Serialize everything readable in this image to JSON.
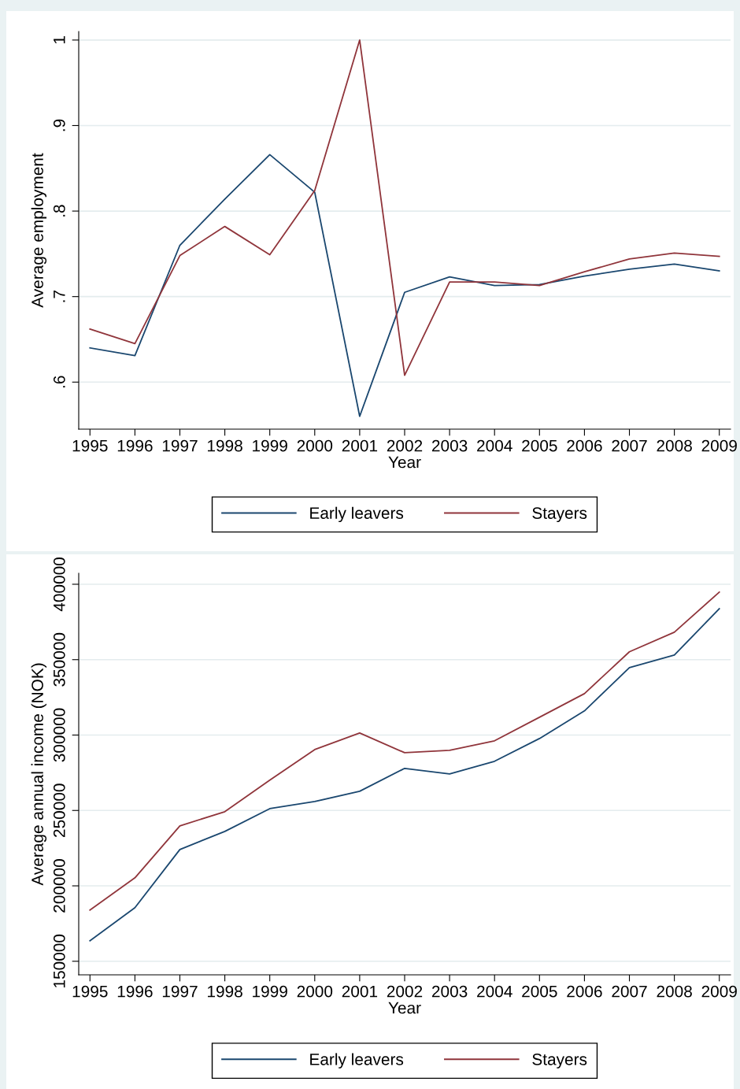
{
  "chart_data": [
    {
      "type": "line",
      "x": [
        1995,
        1996,
        1997,
        1998,
        1999,
        2000,
        2001,
        2002,
        2003,
        2004,
        2005,
        2006,
        2007,
        2008,
        2009
      ],
      "xlabel": "Year",
      "ylabel": "Average employment",
      "xlim": [
        1994.75,
        2009.25
      ],
      "xticks": [
        1995,
        1996,
        1997,
        1998,
        1999,
        2000,
        2001,
        2002,
        2003,
        2004,
        2005,
        2006,
        2007,
        2008,
        2009
      ],
      "ylim": [
        0.545,
        1.01
      ],
      "yticks": [
        {
          "value": 0.6,
          "label": ".6"
        },
        {
          "value": 0.7,
          "label": ".7"
        },
        {
          "value": 0.8,
          "label": ".8"
        },
        {
          "value": 0.9,
          "label": ".9"
        },
        {
          "value": 1,
          "label": "1"
        }
      ],
      "grid": "y",
      "legend": "bottom",
      "marker": "none",
      "line_style": "solid",
      "series": [
        {
          "name": "Early leavers",
          "color": "#1a476f",
          "values": [
            0.64,
            0.631,
            0.76,
            0.814,
            0.866,
            0.822,
            0.56,
            0.705,
            0.723,
            0.713,
            0.714,
            0.724,
            0.732,
            0.738,
            0.73
          ]
        },
        {
          "name": "Stayers",
          "color": "#90353b",
          "values": [
            0.662,
            0.645,
            0.748,
            0.782,
            0.749,
            0.824,
            1.0,
            0.608,
            0.717,
            0.717,
            0.713,
            0.729,
            0.744,
            0.751,
            0.747
          ]
        }
      ]
    },
    {
      "type": "line",
      "x": [
        1995,
        1996,
        1997,
        1998,
        1999,
        2000,
        2001,
        2002,
        2003,
        2004,
        2005,
        2006,
        2007,
        2008,
        2009
      ],
      "xlabel": "Year",
      "ylabel": "Average annual income (NOK)",
      "xlim": [
        1994.75,
        2009.25
      ],
      "xticks": [
        1995,
        1996,
        1997,
        1998,
        1999,
        2000,
        2001,
        2002,
        2003,
        2004,
        2005,
        2006,
        2007,
        2008,
        2009
      ],
      "ylim": [
        141000,
        407300
      ],
      "yticks": [
        150000,
        200000,
        250000,
        300000,
        350000,
        400000
      ],
      "grid": "y",
      "legend": "bottom",
      "marker": "none",
      "line_style": "solid",
      "series": [
        {
          "name": "Early leavers",
          "color": "#1a476f",
          "values": [
            163600,
            185500,
            224100,
            236100,
            251200,
            255900,
            262700,
            277900,
            274200,
            282600,
            297700,
            316000,
            344700,
            353000,
            383800
          ]
        },
        {
          "name": "Stayers",
          "color": "#90353b",
          "values": [
            183900,
            205300,
            239800,
            249200,
            270100,
            290400,
            301400,
            288300,
            289900,
            296200,
            311800,
            327500,
            355200,
            368200,
            394800
          ]
        }
      ]
    }
  ]
}
